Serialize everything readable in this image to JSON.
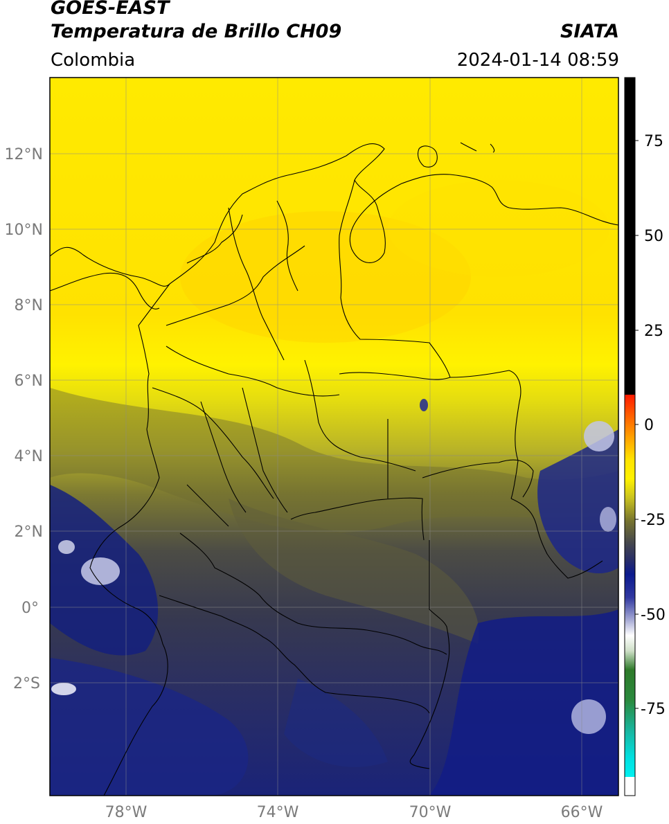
{
  "header": {
    "satellite": "GOES-EAST",
    "product": "Temperatura de Brillo CH09",
    "region": "Colombia",
    "agency": "SIATA",
    "datetime": "2024-01-14 08:59"
  },
  "axes": {
    "lat_ticks": [
      {
        "value": 12,
        "label": "12°N"
      },
      {
        "value": 10,
        "label": "10°N"
      },
      {
        "value": 8,
        "label": "8°N"
      },
      {
        "value": 6,
        "label": "6°N"
      },
      {
        "value": 4,
        "label": "4°N"
      },
      {
        "value": 2,
        "label": "2°N"
      },
      {
        "value": 0,
        "label": "0°"
      },
      {
        "value": -2,
        "label": "2°S"
      }
    ],
    "lon_ticks": [
      {
        "value": -78,
        "label": "78°W"
      },
      {
        "value": -74,
        "label": "74°W"
      },
      {
        "value": -70,
        "label": "70°W"
      },
      {
        "value": -66,
        "label": "66°W"
      }
    ],
    "grid": true
  },
  "colorbar": {
    "ticks": [
      {
        "value": 75,
        "label": "75"
      },
      {
        "value": 50,
        "label": "50"
      },
      {
        "value": 25,
        "label": "25"
      },
      {
        "value": 0,
        "label": "0"
      },
      {
        "value": -25,
        "label": "-25"
      },
      {
        "value": -50,
        "label": "-50"
      },
      {
        "value": -75,
        "label": "-75"
      }
    ],
    "colors": {
      "above_10": "#000000",
      "red": "#ff2000",
      "orange": "#ff9a00",
      "yellow": "#ffef00",
      "olive": "#6f6e2e",
      "dark_gray": "#3c3f58",
      "navy": "#101a8a",
      "light": "#d8dcef",
      "white": "#ffffff",
      "green": "#2f7a2a",
      "teal": "#18b7a4",
      "cyan": "#00e5e5"
    }
  }
}
